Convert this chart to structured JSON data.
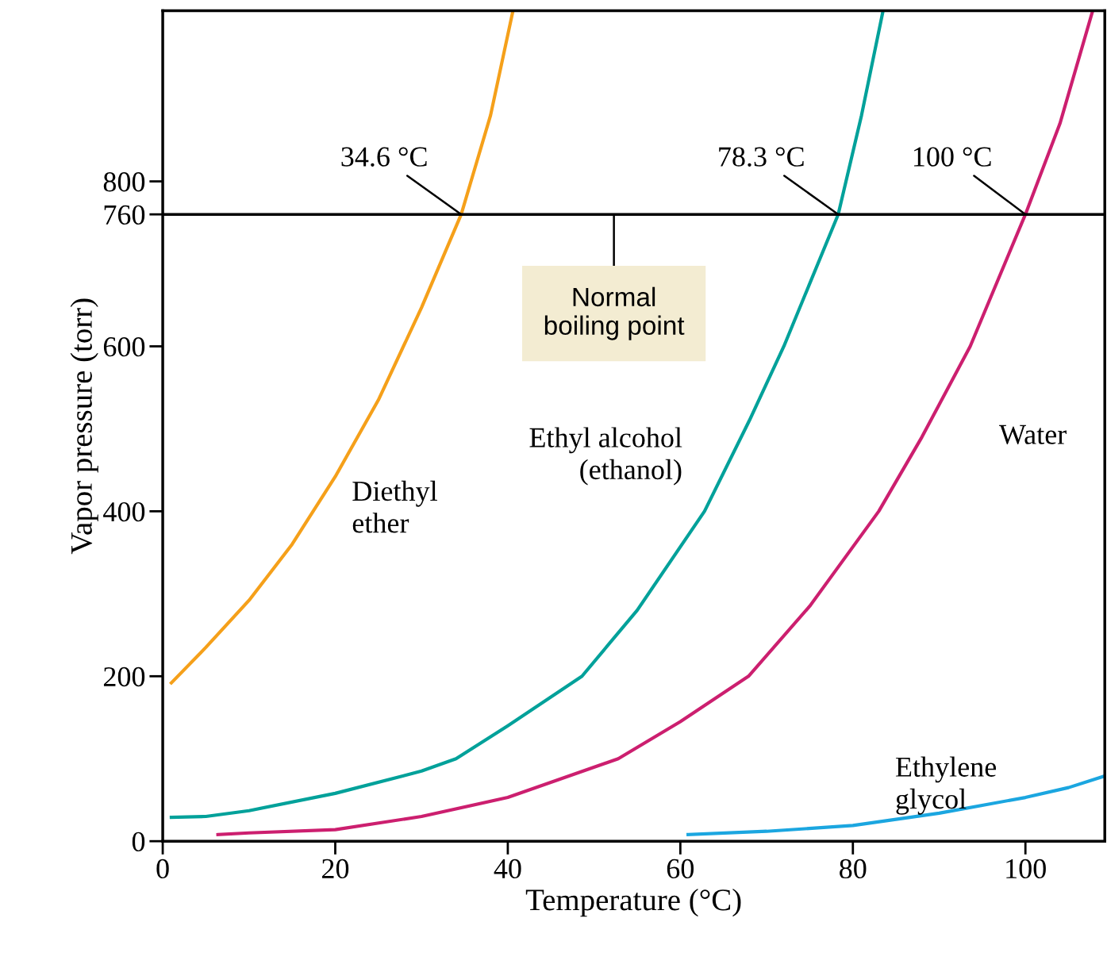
{
  "chart_data": {
    "type": "line",
    "xlabel": "Temperature (°C)",
    "ylabel": "Vapor pressure (torr)",
    "xlim": [
      0,
      109.2
    ],
    "ylim": [
      0,
      1007
    ],
    "xticks": [
      0,
      20,
      40,
      60,
      80,
      100
    ],
    "yticks": [
      0,
      200,
      400,
      600,
      760,
      800
    ],
    "grid": false,
    "legend": false,
    "marker": "none",
    "line_style": "solid",
    "series": [
      {
        "name": "Diethyl\nether",
        "color": "#f5a01a",
        "x": [
          1,
          5,
          10,
          15,
          20,
          25,
          30,
          34.6,
          38,
          40.6
        ],
        "values": [
          192,
          235,
          292,
          360,
          442,
          535,
          647,
          760,
          880,
          1007
        ]
      },
      {
        "name": "Ethyl alcohol\n(ethanol)",
        "color": "#00a19a",
        "x": [
          1,
          5,
          10,
          20,
          30,
          34,
          40,
          48.6,
          55,
          62.8,
          68,
          72,
          78.3,
          81,
          83.5
        ],
        "values": [
          29,
          30,
          37,
          58,
          85,
          100,
          140,
          200,
          280,
          400,
          510,
          600,
          760,
          880,
          1007
        ]
      },
      {
        "name": "Water",
        "color": "#cc1f6f",
        "x": [
          6.4,
          10,
          20,
          30,
          40,
          52.8,
          60,
          67.9,
          75,
          83,
          88,
          93.6,
          100,
          104,
          107.8
        ],
        "values": [
          8,
          10,
          14,
          30,
          53,
          100,
          145,
          200,
          285,
          400,
          490,
          600,
          760,
          870,
          1007
        ]
      },
      {
        "name": "Ethylene\nglycol",
        "color": "#1ba6e0",
        "x": [
          60.9,
          70,
          80,
          90,
          100,
          105,
          109.2
        ],
        "values": [
          8,
          12,
          19,
          34,
          53,
          65,
          79
        ]
      }
    ],
    "ref_lines": [
      {
        "axis": "y",
        "value": 760,
        "color": "#000000",
        "line_style": "solid"
      }
    ],
    "annotations": [
      {
        "text": "34.6 °C",
        "x": 34.6,
        "y": 760
      },
      {
        "text": "78.3 °C",
        "x": 78.3,
        "y": 760
      },
      {
        "text": "100 °C",
        "x": 100,
        "y": 760
      },
      {
        "text": "Normal\nboiling point",
        "x": 52.3,
        "y": 760
      }
    ]
  }
}
